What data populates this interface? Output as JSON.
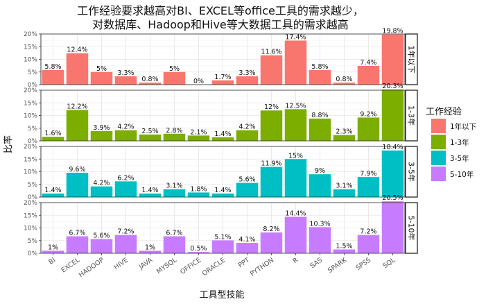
{
  "chart_data": {
    "type": "bar",
    "title_lines": [
      "工作经验要求越高对BI、EXCEL等office工具的需求越少，",
      "对数据库、Hadoop和Hive等大数据工具的需求越高"
    ],
    "xlabel": "工具型技能",
    "ylabel": "比率",
    "ylim": [
      0,
      0.2
    ],
    "yticks": [
      "0%",
      "5%",
      "10%",
      "15%",
      "20%"
    ],
    "categories": [
      "BI",
      "EXCEL",
      "HADOOP",
      "HIVE",
      "JAVA",
      "MYSQL",
      "OFFICE",
      "ORACLE",
      "PPT",
      "PYTHON",
      "R",
      "SAS",
      "SPARK",
      "SPSS",
      "SQL"
    ],
    "legend": {
      "title": "工作经验",
      "placement": "right"
    },
    "series": [
      {
        "name": "1年以下",
        "strip": "1年以下",
        "color": "#F8766D",
        "values": [
          0.058,
          0.124,
          0.05,
          0.033,
          0.008,
          0.05,
          0.0,
          0.017,
          0.033,
          0.116,
          0.174,
          0.058,
          0.008,
          0.074,
          0.198
        ],
        "labels": [
          "5.8%",
          "12.4%",
          "5%",
          "3.3%",
          "0.8%",
          "5%",
          "0%",
          "1.7%",
          "3.3%",
          "11.6%",
          "17.4%",
          "5.8%",
          "0.8%",
          "7.4%",
          "19.8%"
        ]
      },
      {
        "name": "1-3年",
        "strip": "1-3年",
        "color": "#7CAE00",
        "values": [
          0.016,
          0.122,
          0.039,
          0.042,
          0.025,
          0.028,
          0.021,
          0.014,
          0.042,
          0.12,
          0.125,
          0.088,
          0.023,
          0.092,
          0.203
        ],
        "labels": [
          "1.6%",
          "12.2%",
          "3.9%",
          "4.2%",
          "2.5%",
          "2.8%",
          "2.1%",
          "1.4%",
          "4.2%",
          "12%",
          "12.5%",
          "8.8%",
          "2.3%",
          "9.2%",
          "20.3%"
        ]
      },
      {
        "name": "3-5年",
        "strip": "3-5年",
        "color": "#00BFC4",
        "values": [
          0.014,
          0.096,
          0.042,
          0.062,
          0.014,
          0.031,
          0.018,
          0.014,
          0.056,
          0.119,
          0.15,
          0.09,
          0.031,
          0.079,
          0.184
        ],
        "labels": [
          "1.4%",
          "9.6%",
          "4.2%",
          "6.2%",
          "1.4%",
          "3.1%",
          "1.8%",
          "1.4%",
          "5.6%",
          "11.9%",
          "15%",
          "9%",
          "3.1%",
          "7.9%",
          "18.4%"
        ]
      },
      {
        "name": "5-10年",
        "strip": "5-10年",
        "color": "#C77CFF",
        "values": [
          0.01,
          0.067,
          0.056,
          0.072,
          0.01,
          0.067,
          0.005,
          0.051,
          0.041,
          0.082,
          0.144,
          0.103,
          0.015,
          0.072,
          0.205
        ],
        "labels": [
          "1%",
          "6.7%",
          "5.6%",
          "7.2%",
          "1%",
          "6.7%",
          "0.5%",
          "5.1%",
          "4.1%",
          "8.2%",
          "14.4%",
          "10.3%",
          "1.5%",
          "7.2%",
          "20.5%"
        ]
      }
    ]
  }
}
